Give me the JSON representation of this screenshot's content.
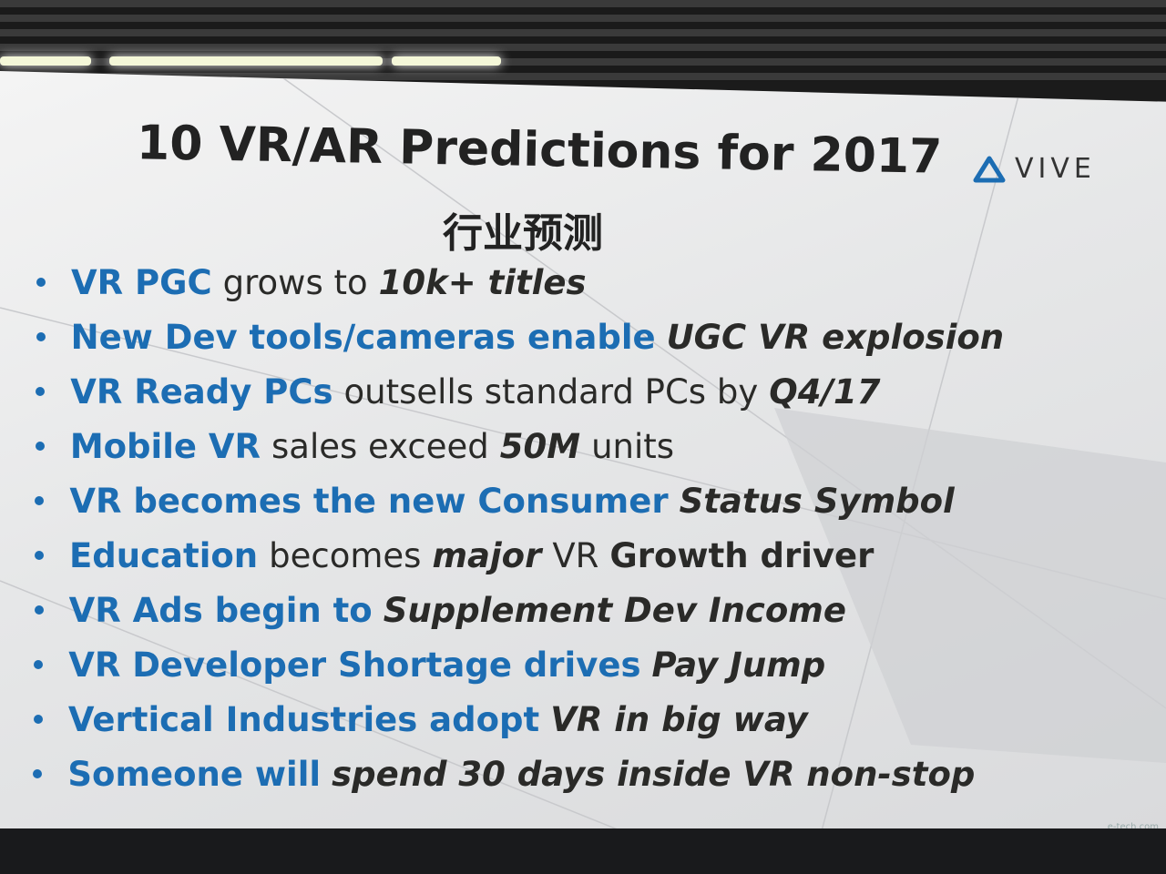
{
  "slide": {
    "title": "10 VR/AR Predictions for 2017",
    "subtitle": "行业预测",
    "logo": "VIVE",
    "watermark": "e-tech.com",
    "colors": {
      "blue": "#1c6db3",
      "dark": "#2a2a28"
    },
    "bullets": [
      [
        {
          "text": "VR PGC",
          "color": "blue",
          "weight": "bold",
          "italic": false
        },
        {
          "text": "grows to",
          "color": "dark",
          "weight": "normal",
          "italic": false
        },
        {
          "text": "10k+ titles",
          "color": "dark",
          "weight": "bold",
          "italic": true
        }
      ],
      [
        {
          "text": "New Dev tools/cameras enable",
          "color": "blue",
          "weight": "bold",
          "italic": false
        },
        {
          "text": "UGC VR explosion",
          "color": "dark",
          "weight": "bold",
          "italic": true
        }
      ],
      [
        {
          "text": "VR Ready PCs",
          "color": "blue",
          "weight": "bold",
          "italic": false
        },
        {
          "text": "outsells standard PCs by",
          "color": "dark",
          "weight": "normal",
          "italic": false
        },
        {
          "text": "Q4/17",
          "color": "dark",
          "weight": "bold",
          "italic": true
        }
      ],
      [
        {
          "text": "Mobile VR",
          "color": "blue",
          "weight": "bold",
          "italic": false
        },
        {
          "text": "sales exceed",
          "color": "dark",
          "weight": "normal",
          "italic": false
        },
        {
          "text": "50M",
          "color": "dark",
          "weight": "bold",
          "italic": true
        },
        {
          "text": "units",
          "color": "dark",
          "weight": "normal",
          "italic": false
        }
      ],
      [
        {
          "text": "VR becomes the new Consumer",
          "color": "blue",
          "weight": "bold",
          "italic": false
        },
        {
          "text": "Status Symbol",
          "color": "dark",
          "weight": "bold",
          "italic": true
        }
      ],
      [
        {
          "text": "Education",
          "color": "blue",
          "weight": "bold",
          "italic": false
        },
        {
          "text": "becomes",
          "color": "dark",
          "weight": "normal",
          "italic": false
        },
        {
          "text": "major",
          "color": "dark",
          "weight": "bold",
          "italic": true
        },
        {
          "text": "VR",
          "color": "dark",
          "weight": "normal",
          "italic": false
        },
        {
          "text": "Growth driver",
          "color": "dark",
          "weight": "bold",
          "italic": false
        }
      ],
      [
        {
          "text": "VR Ads begin to",
          "color": "blue",
          "weight": "bold",
          "italic": false
        },
        {
          "text": "Supplement Dev Income",
          "color": "dark",
          "weight": "bold",
          "italic": true
        }
      ],
      [
        {
          "text": "VR Developer Shortage drives",
          "color": "blue",
          "weight": "bold",
          "italic": false
        },
        {
          "text": "Pay Jump",
          "color": "dark",
          "weight": "bold",
          "italic": true
        }
      ],
      [
        {
          "text": "Vertical Industries adopt",
          "color": "blue",
          "weight": "bold",
          "italic": false
        },
        {
          "text": "VR in big way",
          "color": "dark",
          "weight": "bold",
          "italic": true
        }
      ],
      [
        {
          "text": "Someone will",
          "color": "blue",
          "weight": "bold",
          "italic": false
        },
        {
          "text": "spend 30 days inside VR non-stop",
          "color": "dark",
          "weight": "bold",
          "italic": true
        }
      ]
    ]
  }
}
